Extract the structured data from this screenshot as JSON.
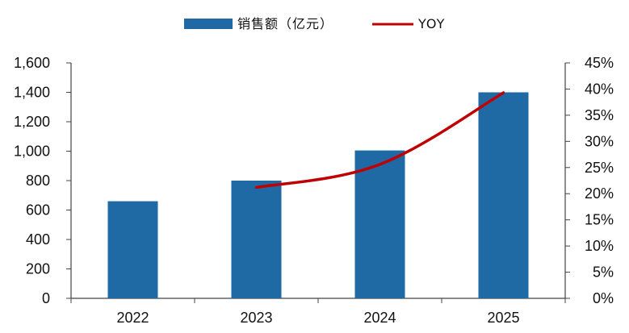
{
  "chart_data": {
    "type": "bar",
    "categories": [
      "2022",
      "2023",
      "2024",
      "2025"
    ],
    "series": [
      {
        "name": "销售额（亿元）",
        "type": "bar",
        "axis": "left",
        "color": "#1f6aa5",
        "values": [
          660,
          800,
          1005,
          1400
        ]
      },
      {
        "name": "YOY",
        "type": "line",
        "axis": "right",
        "color": "#c00000",
        "values": [
          null,
          0.212,
          0.256,
          0.393
        ]
      }
    ],
    "ylim_left": [
      0,
      1600
    ],
    "left_ticks": [
      "0",
      "200",
      "400",
      "600",
      "800",
      "1,000",
      "1,200",
      "1,400",
      "1,600"
    ],
    "ylim_right": [
      0,
      0.45
    ],
    "right_ticks": [
      "0%",
      "5%",
      "10%",
      "15%",
      "20%",
      "25%",
      "30%",
      "35%",
      "40%",
      "45%"
    ],
    "grid": false,
    "legend": "top-center"
  }
}
